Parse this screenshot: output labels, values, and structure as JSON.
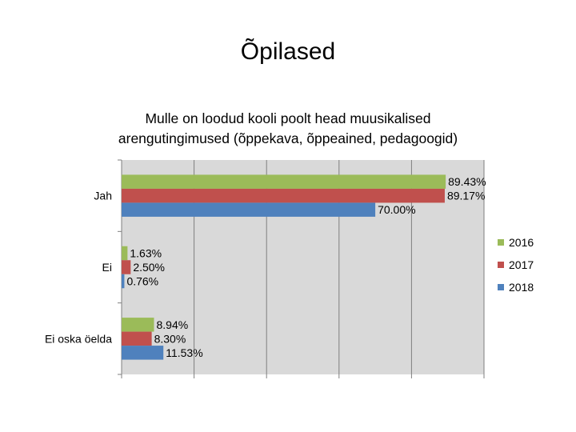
{
  "slide": {
    "title": "Õpilased"
  },
  "chart_data": {
    "type": "bar",
    "orientation": "horizontal",
    "title_lines": [
      "Mulle on loodud kooli poolt head muusikalised",
      "arengutingimused (õppekava, õppeained, pedagoogid)"
    ],
    "categories": [
      "Jah",
      "Ei",
      "Ei oska öelda"
    ],
    "series": [
      {
        "name": "2016",
        "color": "#9bbb59",
        "values": [
          89.43,
          1.63,
          8.94
        ],
        "labels": [
          "89.43%",
          "1.63%",
          "8.94%"
        ]
      },
      {
        "name": "2017",
        "color": "#c0504d",
        "values": [
          89.17,
          2.5,
          8.3
        ],
        "labels": [
          "89.17%",
          "2.50%",
          "8.30%"
        ]
      },
      {
        "name": "2018",
        "color": "#4f81bd",
        "values": [
          70.0,
          0.76,
          11.53
        ],
        "labels": [
          "70.00%",
          "0.76%",
          "11.53%"
        ]
      }
    ],
    "xlim": [
      0,
      100
    ],
    "x_tick_labels_visible": false,
    "grid": true,
    "legend": "right"
  }
}
